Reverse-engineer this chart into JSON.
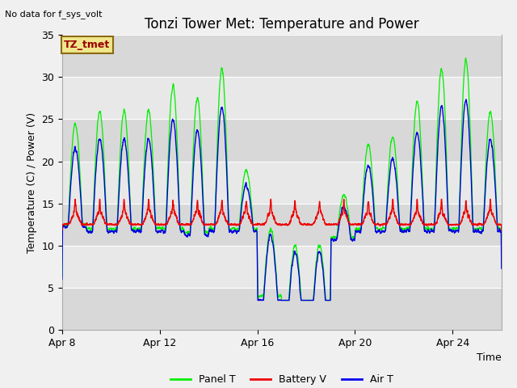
{
  "title": "Tonzi Tower Met: Temperature and Power",
  "xlabel": "Time",
  "ylabel": "Temperature (C) / Power (V)",
  "top_left_text": "No data for f_sys_volt",
  "annotation_box_text": "TZ_tmet",
  "annotation_box_color": "#f0e68c",
  "annotation_box_edge": "#8B6914",
  "annotation_text_color": "#990000",
  "ylim": [
    0,
    35
  ],
  "yticks": [
    0,
    5,
    10,
    15,
    20,
    25,
    30,
    35
  ],
  "x_tick_labels": [
    "Apr 8",
    "Apr 12",
    "Apr 16",
    "Apr 20",
    "Apr 24"
  ],
  "legend_labels": [
    "Panel T",
    "Battery V",
    "Air T"
  ],
  "legend_colors": [
    "#00ee00",
    "#ee0000",
    "#0000ee"
  ],
  "line_colors": {
    "panel": "#00ee00",
    "battery": "#ee0000",
    "air": "#0000dd"
  },
  "fig_bg_color": "#f0f0f0",
  "plot_bg_color": "#e8e8e8",
  "plot_bg_color2": "#d8d8d8",
  "grid_color": "#ffffff",
  "title_fontsize": 12,
  "axis_fontsize": 9,
  "tick_fontsize": 9
}
